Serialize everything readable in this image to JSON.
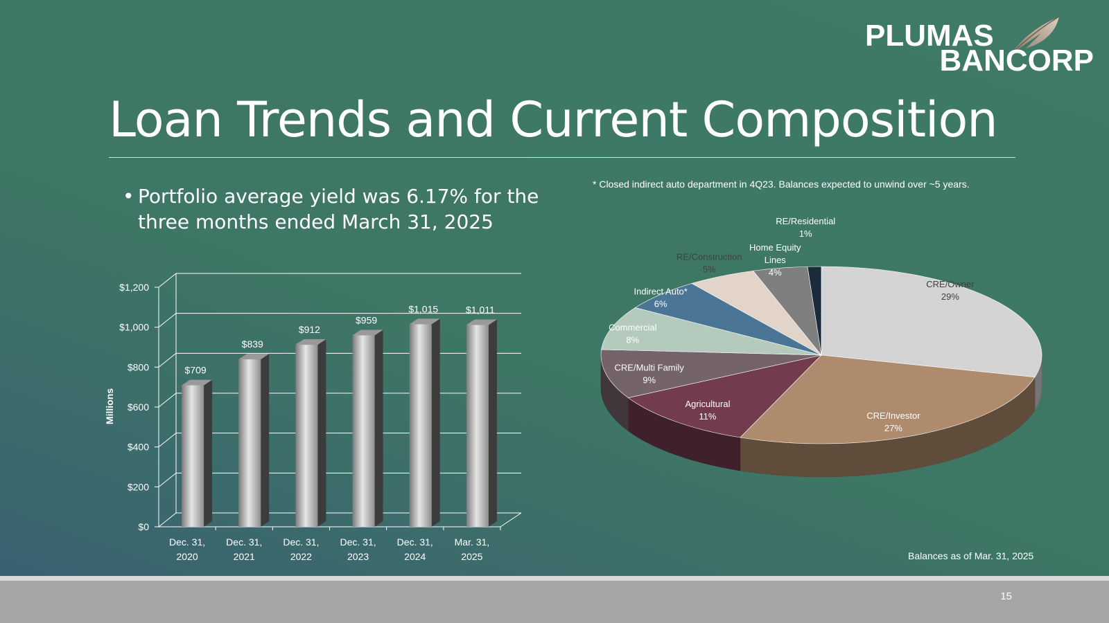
{
  "logo": {
    "line1": "PLUMAS",
    "line2": "BANCORP",
    "icon": "feather-icon"
  },
  "title": "Loan Trends and Current Composition",
  "bullet": "Portfolio average yield was 6.17% for the three months ended March 31, 2025",
  "footnote": "* Closed indirect auto department in 4Q23. Balances expected to unwind over ~5 years.",
  "balances_note": "Balances as of  Mar. 31, 2025",
  "page_number": "15",
  "colors": {
    "bar": "#b8b8b8",
    "text": "#ffffff",
    "footer": "#a6a6a6"
  },
  "chart_data": [
    {
      "type": "bar",
      "ylabel": "Millions",
      "ylim": [
        0,
        1200
      ],
      "yticks": [
        0,
        200,
        400,
        600,
        800,
        1000,
        1200
      ],
      "ytick_labels": [
        "$0",
        "$200",
        "$400",
        "$600",
        "$800",
        "$1,000",
        "$1,200"
      ],
      "grid": true,
      "categories": [
        [
          "Dec. 31,",
          "2020"
        ],
        [
          "Dec. 31,",
          "2021"
        ],
        [
          "Dec. 31,",
          "2022"
        ],
        [
          "Dec. 31,",
          "2023"
        ],
        [
          "Dec. 31,",
          "2024"
        ],
        [
          "Mar. 31,",
          "2025"
        ]
      ],
      "values": [
        709,
        839,
        912,
        959,
        1015,
        1011
      ],
      "value_labels": [
        "$709",
        "$839",
        "$912",
        "$959",
        "$1,015",
        "$1,011"
      ]
    },
    {
      "type": "pie",
      "slices": [
        {
          "label": "CRE/Owner",
          "value": 29,
          "pct": "29%",
          "color": "#d4d4d4"
        },
        {
          "label": "CRE/Investor",
          "value": 27,
          "pct": "27%",
          "color": "#ad8b6c"
        },
        {
          "label": "Agricultural",
          "value": 11,
          "pct": "11%",
          "color": "#723b4e"
        },
        {
          "label": "CRE/Multi Family",
          "value": 9,
          "pct": "9%",
          "color": "#74636b"
        },
        {
          "label": "Commercial",
          "value": 8,
          "pct": "8%",
          "color": "#b3cabd"
        },
        {
          "label": "Indirect Auto*",
          "value": 6,
          "pct": "6%",
          "color": "#4a7594"
        },
        {
          "label": "RE/Construction",
          "value": 5,
          "pct": "5%",
          "color": "#e2d4c8"
        },
        {
          "label": "Home Equity Lines",
          "value": 4,
          "pct": "4%",
          "color": "#7f7f7f"
        },
        {
          "label": "RE/Residential",
          "value": 1,
          "pct": "1%",
          "color": "#1b2b3c"
        }
      ]
    }
  ]
}
